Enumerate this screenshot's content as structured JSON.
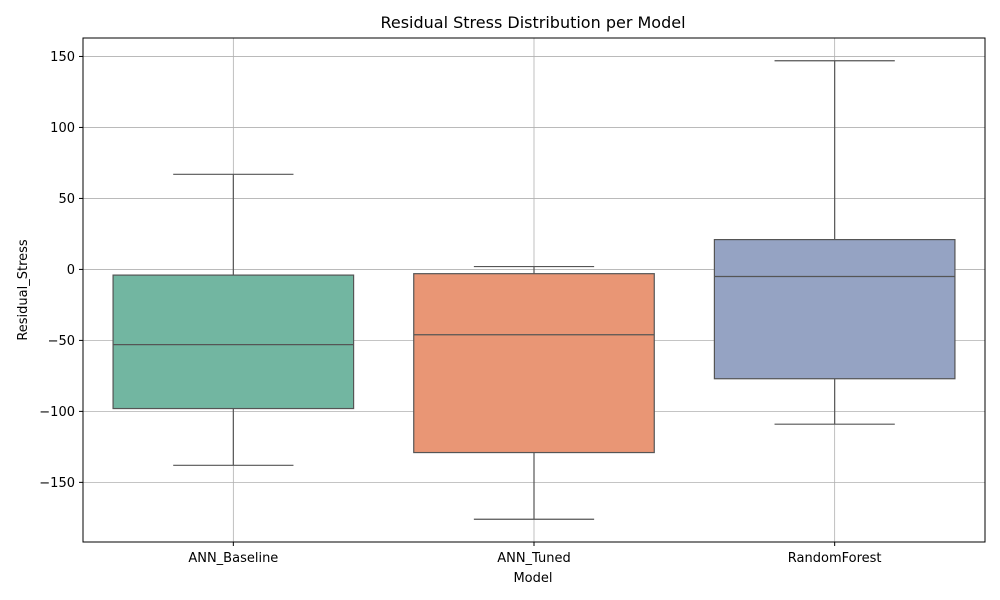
{
  "chart_data": {
    "type": "boxplot",
    "title": "Residual Stress Distribution per Model",
    "xlabel": "Model",
    "ylabel": "Residual_Stress",
    "ylim": [
      -192,
      163
    ],
    "yticks": [
      150,
      100,
      50,
      0,
      -50,
      -100,
      -150
    ],
    "ytick_labels": [
      "150",
      "100",
      "50",
      "0",
      "−50",
      "−100",
      "−150"
    ],
    "grid": true,
    "categories": [
      "ANN_Baseline",
      "ANN_Tuned",
      "RandomForest"
    ],
    "boxes": [
      {
        "category": "ANN_Baseline",
        "whisker_low": -138,
        "q1": -98,
        "median": -53,
        "q3": -4,
        "whisker_high": 67,
        "color": "#72b6a1"
      },
      {
        "category": "ANN_Tuned",
        "whisker_low": -176,
        "q1": -129,
        "median": -46,
        "q3": -3,
        "whisker_high": 2,
        "color": "#e99675"
      },
      {
        "category": "RandomForest",
        "whisker_low": -109,
        "q1": -77,
        "median": -5,
        "q3": 21,
        "whisker_high": 147,
        "color": "#95a3c3"
      }
    ]
  }
}
